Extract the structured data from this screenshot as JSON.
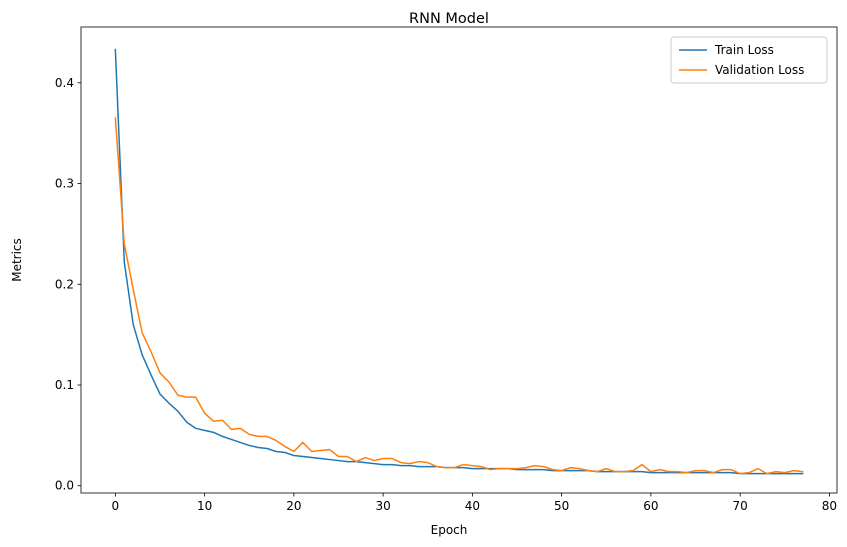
{
  "chart_data": {
    "type": "line",
    "title": "RNN Model",
    "xlabel": "Epoch",
    "ylabel": "Metrics",
    "xlim": [
      -3.85,
      80.85
    ],
    "ylim": [
      -0.0072,
      0.4554
    ],
    "xticks": [
      0,
      10,
      20,
      30,
      40,
      50,
      60,
      70,
      80
    ],
    "yticks": [
      0.0,
      0.1,
      0.2,
      0.3,
      0.4
    ],
    "ytick_labels": [
      "0.0",
      "0.1",
      "0.2",
      "0.3",
      "0.4"
    ],
    "grid": false,
    "legend": "top-right",
    "series": [
      {
        "name": "Train Loss",
        "color": "#1f77b4",
        "values": [
          0.433,
          0.222,
          0.16,
          0.13,
          0.11,
          0.091,
          0.082,
          0.074,
          0.063,
          0.057,
          0.055,
          0.053,
          0.049,
          0.046,
          0.043,
          0.04,
          0.038,
          0.037,
          0.034,
          0.033,
          0.03,
          0.029,
          0.028,
          0.027,
          0.026,
          0.025,
          0.024,
          0.024,
          0.023,
          0.022,
          0.021,
          0.021,
          0.02,
          0.02,
          0.019,
          0.019,
          0.019,
          0.018,
          0.018,
          0.018,
          0.017,
          0.017,
          0.017,
          0.017,
          0.017,
          0.016,
          0.016,
          0.016,
          0.016,
          0.015,
          0.015,
          0.015,
          0.015,
          0.015,
          0.014,
          0.014,
          0.014,
          0.014,
          0.014,
          0.014,
          0.013,
          0.013,
          0.013,
          0.013,
          0.013,
          0.013,
          0.013,
          0.013,
          0.013,
          0.013,
          0.012,
          0.012,
          0.012,
          0.012,
          0.012,
          0.012,
          0.012,
          0.012
        ]
      },
      {
        "name": "Validation Loss",
        "color": "#ff7f0e",
        "values": [
          0.365,
          0.24,
          0.195,
          0.152,
          0.133,
          0.112,
          0.103,
          0.09,
          0.088,
          0.088,
          0.072,
          0.064,
          0.065,
          0.056,
          0.057,
          0.051,
          0.049,
          0.049,
          0.045,
          0.039,
          0.034,
          0.043,
          0.034,
          0.035,
          0.036,
          0.029,
          0.029,
          0.024,
          0.028,
          0.025,
          0.027,
          0.027,
          0.023,
          0.022,
          0.024,
          0.023,
          0.019,
          0.018,
          0.018,
          0.021,
          0.02,
          0.019,
          0.016,
          0.017,
          0.017,
          0.017,
          0.018,
          0.02,
          0.019,
          0.016,
          0.015,
          0.018,
          0.017,
          0.015,
          0.014,
          0.017,
          0.014,
          0.014,
          0.015,
          0.021,
          0.014,
          0.016,
          0.014,
          0.014,
          0.013,
          0.015,
          0.015,
          0.013,
          0.016,
          0.016,
          0.012,
          0.013,
          0.017,
          0.012,
          0.014,
          0.013,
          0.015,
          0.014
        ]
      }
    ]
  }
}
